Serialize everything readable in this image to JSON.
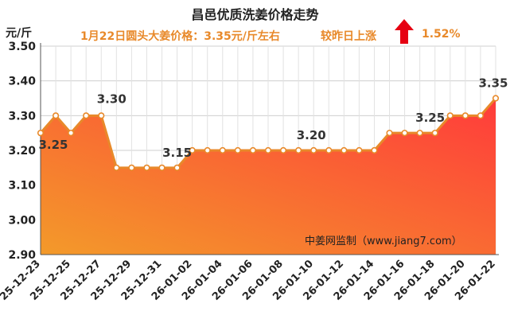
{
  "header": {
    "title": "昌邑优质洗姜价格走势",
    "subtitle": "1月22日圆头大姜价格：3.35元/斤左右",
    "change_label": "较昨日上涨",
    "change_value": "1.52%",
    "up_arrow_icon": "up-arrow-icon",
    "accent_color": "#e8892a",
    "arrow_color": "#e60012"
  },
  "watermark": "中姜网监制（www.jiang7.com）",
  "chart_data": {
    "type": "area",
    "title": "昌邑优质洗姜价格走势",
    "ylabel": "元/斤",
    "xlabel": "",
    "ylim": [
      2.9,
      3.5
    ],
    "yticks": [
      "2.90",
      "3.00",
      "3.10",
      "3.20",
      "3.30",
      "3.40",
      "3.50"
    ],
    "grid": true,
    "x": [
      "25-12-23",
      "25-12-24",
      "25-12-25",
      "25-12-26",
      "25-12-27",
      "25-12-28",
      "25-12-29",
      "25-12-30",
      "25-12-31",
      "26-01-01",
      "26-01-02",
      "26-01-03",
      "26-01-04",
      "26-01-05",
      "26-01-06",
      "26-01-07",
      "26-01-08",
      "26-01-09",
      "26-01-10",
      "26-01-11",
      "26-01-12",
      "26-01-13",
      "26-01-14",
      "26-01-15",
      "26-01-16",
      "26-01-17",
      "26-01-18",
      "26-01-19",
      "26-01-20",
      "26-01-21",
      "26-01-22"
    ],
    "xticks": [
      "25-12-23",
      "25-12-25",
      "25-12-27",
      "25-12-29",
      "25-12-31",
      "26-01-02",
      "26-01-04",
      "26-01-06",
      "26-01-08",
      "26-01-10",
      "26-01-12",
      "26-01-14",
      "26-01-16",
      "26-01-18",
      "26-01-20",
      "26-01-22"
    ],
    "values": [
      3.25,
      3.3,
      3.25,
      3.3,
      3.3,
      3.15,
      3.15,
      3.15,
      3.15,
      3.15,
      3.2,
      3.2,
      3.2,
      3.2,
      3.2,
      3.2,
      3.2,
      3.2,
      3.2,
      3.2,
      3.2,
      3.2,
      3.2,
      3.25,
      3.25,
      3.25,
      3.25,
      3.3,
      3.3,
      3.3,
      3.35
    ],
    "data_labels": [
      {
        "index": 0,
        "text": "3.25"
      },
      {
        "index": 4,
        "text": "3.30"
      },
      {
        "index": 9,
        "text": "3.15"
      },
      {
        "index": 18,
        "text": "3.20"
      },
      {
        "index": 25,
        "text": "3.25"
      },
      {
        "index": 30,
        "text": "3.35"
      }
    ],
    "line_color": "#e8892a",
    "fill_top_color": "#ff3b3b",
    "fill_bottom_color": "#f39a2a"
  }
}
